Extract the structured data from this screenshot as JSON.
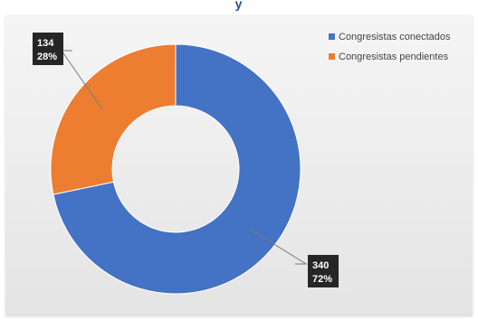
{
  "page": {
    "title_fragment": "y"
  },
  "chart_data": {
    "type": "pie",
    "variant": "donut",
    "title": "",
    "legend_position": "top-right",
    "slices": [
      {
        "label": "Congresistas conectados",
        "value": 340,
        "percent": "72%",
        "color": "#4472c4"
      },
      {
        "label": "Congresistas pendientes",
        "value": 134,
        "percent": "28%",
        "color": "#ed7d31"
      }
    ]
  }
}
